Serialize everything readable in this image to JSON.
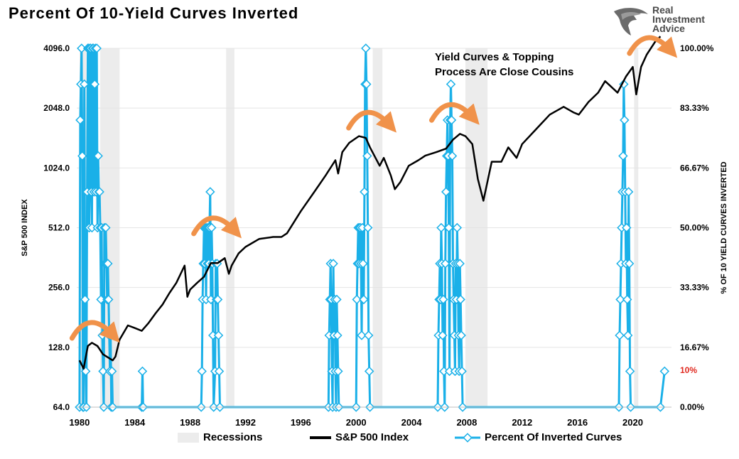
{
  "title": "Percent Of 10-Yield Curves Inverted",
  "logo": {
    "line1": "Real",
    "line2": "Investment",
    "line3": "Advice",
    "icon": "eagle-head-icon"
  },
  "annotation": {
    "line1": "Yield Curves & Topping",
    "line2": "Process Are Close Cousins"
  },
  "red_label": "10%",
  "colors": {
    "sp500": "#000000",
    "pct": "#1ab0e8",
    "recession": "#ececec",
    "arrow": "#f0924a",
    "red": "#e0281e"
  },
  "chart_data": {
    "type": "line",
    "x_ticks": [
      "1980",
      "1984",
      "1988",
      "1992",
      "1996",
      "2000",
      "2004",
      "2008",
      "2012",
      "2016",
      "2020"
    ],
    "x_range": [
      1979.8,
      2022.8
    ],
    "y_left": {
      "label": "S&P 500 INDEX",
      "scale": "log2",
      "ticks": [
        "64.0",
        "128.0",
        "256.0",
        "512.0",
        "1024.0",
        "2048.0",
        "4096.0"
      ],
      "range": [
        64,
        4096
      ]
    },
    "y_right": {
      "label": "% OF 10 YIELD CURVES INVERTED",
      "ticks": [
        "0.00%",
        "16.67%",
        "33.33%",
        "50.00%",
        "66.67%",
        "83.33%",
        "100.00%"
      ],
      "range": [
        0,
        100
      ]
    },
    "recessions": [
      [
        1980.0,
        1980.5
      ],
      [
        1981.5,
        1982.9
      ],
      [
        1990.6,
        1991.2
      ],
      [
        2001.2,
        2001.9
      ],
      [
        2007.9,
        2009.5
      ],
      [
        2020.1,
        2020.4
      ]
    ],
    "series": [
      {
        "name": "S&P 500 Index",
        "points": [
          [
            1980.0,
            110
          ],
          [
            1980.3,
            100
          ],
          [
            1980.6,
            130
          ],
          [
            1980.9,
            135
          ],
          [
            1981.3,
            130
          ],
          [
            1981.7,
            118
          ],
          [
            1982.4,
            110
          ],
          [
            1982.6,
            115
          ],
          [
            1982.9,
            140
          ],
          [
            1983.5,
            165
          ],
          [
            1984.0,
            160
          ],
          [
            1984.5,
            155
          ],
          [
            1985.0,
            170
          ],
          [
            1985.5,
            190
          ],
          [
            1986.0,
            210
          ],
          [
            1986.5,
            240
          ],
          [
            1987.0,
            270
          ],
          [
            1987.6,
            330
          ],
          [
            1987.8,
            230
          ],
          [
            1988.0,
            250
          ],
          [
            1988.5,
            270
          ],
          [
            1989.0,
            290
          ],
          [
            1989.5,
            340
          ],
          [
            1990.0,
            340
          ],
          [
            1990.5,
            360
          ],
          [
            1990.8,
            300
          ],
          [
            1991.0,
            330
          ],
          [
            1991.5,
            380
          ],
          [
            1992.0,
            410
          ],
          [
            1993.0,
            450
          ],
          [
            1994.0,
            460
          ],
          [
            1994.6,
            460
          ],
          [
            1995.0,
            480
          ],
          [
            1996.0,
            620
          ],
          [
            1997.0,
            780
          ],
          [
            1997.8,
            940
          ],
          [
            1998.5,
            1120
          ],
          [
            1998.7,
            960
          ],
          [
            1999.0,
            1230
          ],
          [
            1999.5,
            1370
          ],
          [
            2000.2,
            1480
          ],
          [
            2000.7,
            1450
          ],
          [
            2001.0,
            1300
          ],
          [
            2001.7,
            1050
          ],
          [
            2002.0,
            1150
          ],
          [
            2002.5,
            940
          ],
          [
            2002.8,
            800
          ],
          [
            2003.2,
            870
          ],
          [
            2003.8,
            1050
          ],
          [
            2004.5,
            1120
          ],
          [
            2005.0,
            1180
          ],
          [
            2005.8,
            1230
          ],
          [
            2006.5,
            1280
          ],
          [
            2007.0,
            1420
          ],
          [
            2007.5,
            1520
          ],
          [
            2007.9,
            1480
          ],
          [
            2008.4,
            1350
          ],
          [
            2008.8,
            900
          ],
          [
            2009.2,
            700
          ],
          [
            2009.8,
            1100
          ],
          [
            2010.5,
            1100
          ],
          [
            2011.0,
            1300
          ],
          [
            2011.6,
            1150
          ],
          [
            2012.0,
            1350
          ],
          [
            2013.0,
            1600
          ],
          [
            2014.0,
            1900
          ],
          [
            2015.0,
            2080
          ],
          [
            2015.7,
            1950
          ],
          [
            2016.1,
            1900
          ],
          [
            2016.8,
            2200
          ],
          [
            2017.5,
            2450
          ],
          [
            2018.0,
            2800
          ],
          [
            2018.9,
            2450
          ],
          [
            2019.5,
            2950
          ],
          [
            2020.0,
            3300
          ],
          [
            2020.25,
            2400
          ],
          [
            2020.6,
            3300
          ],
          [
            2021.0,
            3800
          ],
          [
            2021.6,
            4400
          ],
          [
            2022.0,
            4700
          ]
        ]
      },
      {
        "name": "Percent Of Inverted Curves",
        "points": [
          [
            1980.0,
            0
          ],
          [
            1980.05,
            80
          ],
          [
            1980.1,
            90
          ],
          [
            1980.15,
            100
          ],
          [
            1980.2,
            70
          ],
          [
            1980.25,
            0
          ],
          [
            1980.3,
            0
          ],
          [
            1980.35,
            90
          ],
          [
            1980.4,
            30
          ],
          [
            1980.45,
            10
          ],
          [
            1980.5,
            0
          ],
          [
            1980.55,
            60
          ],
          [
            1980.6,
            100
          ],
          [
            1980.65,
            100
          ],
          [
            1980.7,
            50
          ],
          [
            1980.75,
            100
          ],
          [
            1980.8,
            100
          ],
          [
            1980.85,
            60
          ],
          [
            1980.9,
            50
          ],
          [
            1980.95,
            100
          ],
          [
            1981.0,
            100
          ],
          [
            1981.05,
            60
          ],
          [
            1981.1,
            90
          ],
          [
            1981.15,
            100
          ],
          [
            1981.2,
            60
          ],
          [
            1981.25,
            100
          ],
          [
            1981.3,
            50
          ],
          [
            1981.35,
            70
          ],
          [
            1981.4,
            60
          ],
          [
            1981.45,
            60
          ],
          [
            1981.5,
            50
          ],
          [
            1981.55,
            30
          ],
          [
            1981.6,
            50
          ],
          [
            1981.65,
            20
          ],
          [
            1981.7,
            10
          ],
          [
            1981.75,
            0
          ],
          [
            1981.8,
            50
          ],
          [
            1981.85,
            40
          ],
          [
            1981.9,
            50
          ],
          [
            1981.95,
            40
          ],
          [
            1982.0,
            30
          ],
          [
            1982.05,
            40
          ],
          [
            1982.1,
            30
          ],
          [
            1982.15,
            20
          ],
          [
            1982.2,
            10
          ],
          [
            1982.25,
            20
          ],
          [
            1982.3,
            0
          ],
          [
            1982.35,
            10
          ],
          [
            1982.4,
            0
          ],
          [
            1984.5,
            0
          ],
          [
            1984.55,
            10
          ],
          [
            1984.6,
            0
          ],
          [
            1988.8,
            0
          ],
          [
            1988.85,
            10
          ],
          [
            1988.9,
            30
          ],
          [
            1988.95,
            40
          ],
          [
            1989.0,
            50
          ],
          [
            1989.05,
            40
          ],
          [
            1989.1,
            50
          ],
          [
            1989.15,
            30
          ],
          [
            1989.2,
            50
          ],
          [
            1989.25,
            40
          ],
          [
            1989.3,
            50
          ],
          [
            1989.35,
            40
          ],
          [
            1989.4,
            50
          ],
          [
            1989.45,
            60
          ],
          [
            1989.5,
            30
          ],
          [
            1989.55,
            50
          ],
          [
            1989.6,
            40
          ],
          [
            1989.65,
            20
          ],
          [
            1989.7,
            0
          ],
          [
            1989.8,
            10
          ],
          [
            1989.85,
            40
          ],
          [
            1989.9,
            30
          ],
          [
            1989.95,
            40
          ],
          [
            1990.0,
            30
          ],
          [
            1990.05,
            20
          ],
          [
            1990.1,
            10
          ],
          [
            1990.15,
            0
          ],
          [
            1998.0,
            0
          ],
          [
            1998.05,
            20
          ],
          [
            1998.1,
            30
          ],
          [
            1998.15,
            40
          ],
          [
            1998.2,
            30
          ],
          [
            1998.25,
            10
          ],
          [
            1998.3,
            0
          ],
          [
            1998.35,
            40
          ],
          [
            1998.4,
            20
          ],
          [
            1998.45,
            30
          ],
          [
            1998.5,
            10
          ],
          [
            1998.55,
            0
          ],
          [
            1998.6,
            30
          ],
          [
            1998.65,
            20
          ],
          [
            1998.7,
            10
          ],
          [
            1998.75,
            0
          ],
          [
            2000.0,
            0
          ],
          [
            2000.05,
            30
          ],
          [
            2000.1,
            40
          ],
          [
            2000.15,
            50
          ],
          [
            2000.2,
            40
          ],
          [
            2000.25,
            50
          ],
          [
            2000.3,
            50
          ],
          [
            2000.35,
            40
          ],
          [
            2000.4,
            20
          ],
          [
            2000.45,
            50
          ],
          [
            2000.5,
            40
          ],
          [
            2000.55,
            30
          ],
          [
            2000.6,
            60
          ],
          [
            2000.65,
            90
          ],
          [
            2000.7,
            100
          ],
          [
            2000.75,
            90
          ],
          [
            2000.8,
            70
          ],
          [
            2000.85,
            50
          ],
          [
            2000.9,
            20
          ],
          [
            2000.95,
            10
          ],
          [
            2001.0,
            0
          ],
          [
            2005.9,
            0
          ],
          [
            2005.95,
            20
          ],
          [
            2006.0,
            30
          ],
          [
            2006.05,
            40
          ],
          [
            2006.1,
            30
          ],
          [
            2006.15,
            50
          ],
          [
            2006.2,
            40
          ],
          [
            2006.25,
            20
          ],
          [
            2006.3,
            30
          ],
          [
            2006.35,
            10
          ],
          [
            2006.4,
            0
          ],
          [
            2006.45,
            40
          ],
          [
            2006.5,
            60
          ],
          [
            2006.55,
            70
          ],
          [
            2006.6,
            80
          ],
          [
            2006.65,
            70
          ],
          [
            2006.7,
            50
          ],
          [
            2006.75,
            10
          ],
          [
            2006.8,
            80
          ],
          [
            2006.85,
            90
          ],
          [
            2006.9,
            80
          ],
          [
            2006.95,
            70
          ],
          [
            2007.0,
            40
          ],
          [
            2007.05,
            30
          ],
          [
            2007.1,
            20
          ],
          [
            2007.15,
            10
          ],
          [
            2007.2,
            40
          ],
          [
            2007.25,
            30
          ],
          [
            2007.3,
            50
          ],
          [
            2007.35,
            40
          ],
          [
            2007.4,
            20
          ],
          [
            2007.45,
            10
          ],
          [
            2007.5,
            40
          ],
          [
            2007.55,
            30
          ],
          [
            2007.6,
            20
          ],
          [
            2007.65,
            10
          ],
          [
            2007.7,
            0
          ],
          [
            2019.0,
            0
          ],
          [
            2019.05,
            20
          ],
          [
            2019.1,
            30
          ],
          [
            2019.15,
            40
          ],
          [
            2019.2,
            50
          ],
          [
            2019.25,
            60
          ],
          [
            2019.3,
            70
          ],
          [
            2019.35,
            90
          ],
          [
            2019.4,
            80
          ],
          [
            2019.45,
            60
          ],
          [
            2019.5,
            40
          ],
          [
            2019.55,
            50
          ],
          [
            2019.6,
            30
          ],
          [
            2019.65,
            20
          ],
          [
            2019.7,
            60
          ],
          [
            2019.75,
            40
          ],
          [
            2019.8,
            10
          ],
          [
            2019.85,
            0
          ],
          [
            2022.0,
            0
          ],
          [
            2022.3,
            10
          ]
        ]
      }
    ]
  },
  "legend": [
    {
      "label": "Recessions",
      "kind": "area"
    },
    {
      "label": "S&P 500 Index",
      "kind": "line"
    },
    {
      "label": "Percent Of Inverted Curves",
      "kind": "line-marker"
    }
  ]
}
